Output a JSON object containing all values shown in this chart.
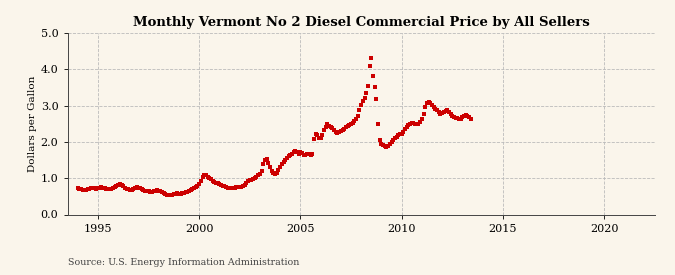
{
  "title": "Monthly Vermont No 2 Diesel Commercial Price by All Sellers",
  "ylabel": "Dollars per Gallon",
  "source": "Source: U.S. Energy Information Administration",
  "xlim": [
    1993.5,
    2022.5
  ],
  "ylim": [
    0.0,
    5.0
  ],
  "yticks": [
    0.0,
    1.0,
    2.0,
    3.0,
    4.0,
    5.0
  ],
  "xticks": [
    1995,
    2000,
    2005,
    2010,
    2015,
    2020
  ],
  "background_color": "#faf5eb",
  "dot_color": "#cc0000",
  "dot_size": 5,
  "data_x": [
    1994.0,
    1994.083,
    1994.167,
    1994.25,
    1994.333,
    1994.417,
    1994.5,
    1994.583,
    1994.667,
    1994.75,
    1994.833,
    1994.917,
    1995.0,
    1995.083,
    1995.167,
    1995.25,
    1995.333,
    1995.417,
    1995.5,
    1995.583,
    1995.667,
    1995.75,
    1995.833,
    1995.917,
    1996.0,
    1996.083,
    1996.167,
    1996.25,
    1996.333,
    1996.417,
    1996.5,
    1996.583,
    1996.667,
    1996.75,
    1996.833,
    1996.917,
    1997.0,
    1997.083,
    1997.167,
    1997.25,
    1997.333,
    1997.417,
    1997.5,
    1997.583,
    1997.667,
    1997.75,
    1997.833,
    1997.917,
    1998.0,
    1998.083,
    1998.167,
    1998.25,
    1998.333,
    1998.417,
    1998.5,
    1998.583,
    1998.667,
    1998.75,
    1998.833,
    1998.917,
    1999.0,
    1999.083,
    1999.167,
    1999.25,
    1999.333,
    1999.417,
    1999.5,
    1999.583,
    1999.667,
    1999.75,
    1999.833,
    1999.917,
    2000.0,
    2000.083,
    2000.167,
    2000.25,
    2000.333,
    2000.417,
    2000.5,
    2000.583,
    2000.667,
    2000.75,
    2000.833,
    2000.917,
    2001.0,
    2001.083,
    2001.167,
    2001.25,
    2001.333,
    2001.417,
    2001.5,
    2001.583,
    2001.667,
    2001.75,
    2001.833,
    2001.917,
    2002.0,
    2002.083,
    2002.167,
    2002.25,
    2002.333,
    2002.417,
    2002.5,
    2002.583,
    2002.667,
    2002.75,
    2002.833,
    2002.917,
    2003.0,
    2003.083,
    2003.167,
    2003.25,
    2003.333,
    2003.417,
    2003.5,
    2003.583,
    2003.667,
    2003.75,
    2003.833,
    2003.917,
    2004.0,
    2004.083,
    2004.167,
    2004.25,
    2004.333,
    2004.417,
    2004.5,
    2004.583,
    2004.667,
    2004.75,
    2004.833,
    2004.917,
    2005.0,
    2005.083,
    2005.167,
    2005.25,
    2005.333,
    2005.417,
    2005.5,
    2005.583,
    2005.667,
    2005.75,
    2005.833,
    2005.917,
    2006.0,
    2006.083,
    2006.167,
    2006.25,
    2006.333,
    2006.417,
    2006.5,
    2006.583,
    2006.667,
    2006.75,
    2006.833,
    2006.917,
    2007.0,
    2007.083,
    2007.167,
    2007.25,
    2007.333,
    2007.417,
    2007.5,
    2007.583,
    2007.667,
    2007.75,
    2007.833,
    2007.917,
    2008.0,
    2008.083,
    2008.167,
    2008.25,
    2008.333,
    2008.417,
    2008.5,
    2008.583,
    2008.667,
    2008.75,
    2008.833,
    2008.917,
    2009.0,
    2009.083,
    2009.167,
    2009.25,
    2009.333,
    2009.417,
    2009.5,
    2009.583,
    2009.667,
    2009.75,
    2009.833,
    2009.917,
    2010.0,
    2010.083,
    2010.167,
    2010.25,
    2010.333,
    2010.417,
    2010.5,
    2010.583,
    2010.667,
    2010.75,
    2010.833,
    2010.917,
    2011.0,
    2011.083,
    2011.167,
    2011.25,
    2011.333,
    2011.417,
    2011.5,
    2011.583,
    2011.667,
    2011.75,
    2011.833,
    2011.917,
    2012.0,
    2012.083,
    2012.167,
    2012.25,
    2012.333,
    2012.417,
    2012.5,
    2012.583,
    2012.667,
    2012.75,
    2012.833,
    2012.917,
    2013.0,
    2013.083,
    2013.167,
    2013.25,
    2013.333,
    2013.417
  ],
  "data_y": [
    0.72,
    0.71,
    0.69,
    0.67,
    0.67,
    0.68,
    0.7,
    0.71,
    0.73,
    0.74,
    0.73,
    0.71,
    0.72,
    0.74,
    0.76,
    0.74,
    0.72,
    0.7,
    0.69,
    0.69,
    0.7,
    0.72,
    0.75,
    0.78,
    0.8,
    0.84,
    0.82,
    0.78,
    0.74,
    0.71,
    0.7,
    0.68,
    0.67,
    0.7,
    0.73,
    0.76,
    0.74,
    0.72,
    0.7,
    0.67,
    0.65,
    0.64,
    0.64,
    0.63,
    0.63,
    0.64,
    0.66,
    0.68,
    0.66,
    0.64,
    0.61,
    0.58,
    0.56,
    0.55,
    0.54,
    0.54,
    0.55,
    0.56,
    0.57,
    0.58,
    0.57,
    0.57,
    0.58,
    0.6,
    0.62,
    0.63,
    0.65,
    0.67,
    0.69,
    0.72,
    0.75,
    0.79,
    0.84,
    0.92,
    1.02,
    1.1,
    1.08,
    1.04,
    1.0,
    0.97,
    0.93,
    0.9,
    0.88,
    0.86,
    0.84,
    0.82,
    0.79,
    0.78,
    0.76,
    0.74,
    0.73,
    0.72,
    0.72,
    0.73,
    0.75,
    0.77,
    0.77,
    0.76,
    0.78,
    0.82,
    0.87,
    0.92,
    0.94,
    0.96,
    0.98,
    1.0,
    1.04,
    1.08,
    1.12,
    1.2,
    1.38,
    1.5,
    1.52,
    1.42,
    1.3,
    1.2,
    1.14,
    1.12,
    1.15,
    1.22,
    1.3,
    1.38,
    1.45,
    1.5,
    1.55,
    1.6,
    1.64,
    1.68,
    1.72,
    1.74,
    1.72,
    1.68,
    1.72,
    1.7,
    1.65,
    1.65,
    1.68,
    1.68,
    1.65,
    1.68,
    2.08,
    2.22,
    2.18,
    2.1,
    2.12,
    2.2,
    2.32,
    2.42,
    2.48,
    2.45,
    2.42,
    2.38,
    2.32,
    2.28,
    2.24,
    2.28,
    2.3,
    2.32,
    2.35,
    2.4,
    2.44,
    2.47,
    2.5,
    2.53,
    2.57,
    2.62,
    2.72,
    2.88,
    3.02,
    3.12,
    3.22,
    3.35,
    3.55,
    4.08,
    4.3,
    3.82,
    3.52,
    3.18,
    2.48,
    2.05,
    1.95,
    1.92,
    1.88,
    1.87,
    1.88,
    1.93,
    2.0,
    2.05,
    2.1,
    2.14,
    2.18,
    2.22,
    2.22,
    2.28,
    2.35,
    2.42,
    2.47,
    2.5,
    2.52,
    2.52,
    2.5,
    2.48,
    2.5,
    2.55,
    2.62,
    2.78,
    2.95,
    3.08,
    3.1,
    3.07,
    3.02,
    2.97,
    2.92,
    2.87,
    2.82,
    2.78,
    2.8,
    2.82,
    2.86,
    2.88,
    2.82,
    2.76,
    2.72,
    2.68,
    2.65,
    2.65,
    2.64,
    2.62,
    2.68,
    2.72,
    2.74,
    2.72,
    2.68,
    2.64
  ]
}
